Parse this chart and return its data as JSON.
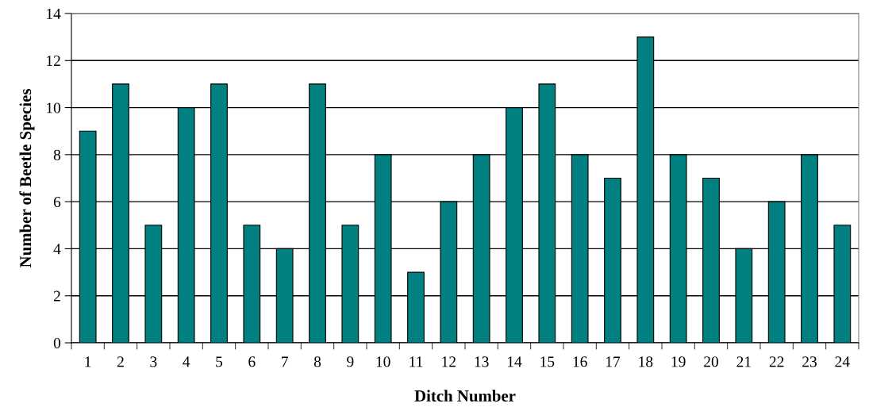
{
  "chart_data": {
    "type": "bar",
    "xlabel": "Ditch Number",
    "ylabel": "Number of Beetle Species",
    "categories": [
      "1",
      "2",
      "3",
      "4",
      "5",
      "6",
      "7",
      "8",
      "9",
      "10",
      "11",
      "12",
      "13",
      "14",
      "15",
      "16",
      "17",
      "18",
      "19",
      "20",
      "21",
      "22",
      "23",
      "24"
    ],
    "values": [
      9,
      11,
      5,
      10,
      11,
      5,
      4,
      11,
      5,
      8,
      3,
      6,
      8,
      10,
      11,
      8,
      7,
      13,
      8,
      7,
      4,
      6,
      8,
      5
    ],
    "color": "#008080",
    "ylim": [
      0,
      14
    ],
    "yticks": [
      0,
      2,
      4,
      6,
      8,
      10,
      12,
      14
    ],
    "grid": "y"
  }
}
